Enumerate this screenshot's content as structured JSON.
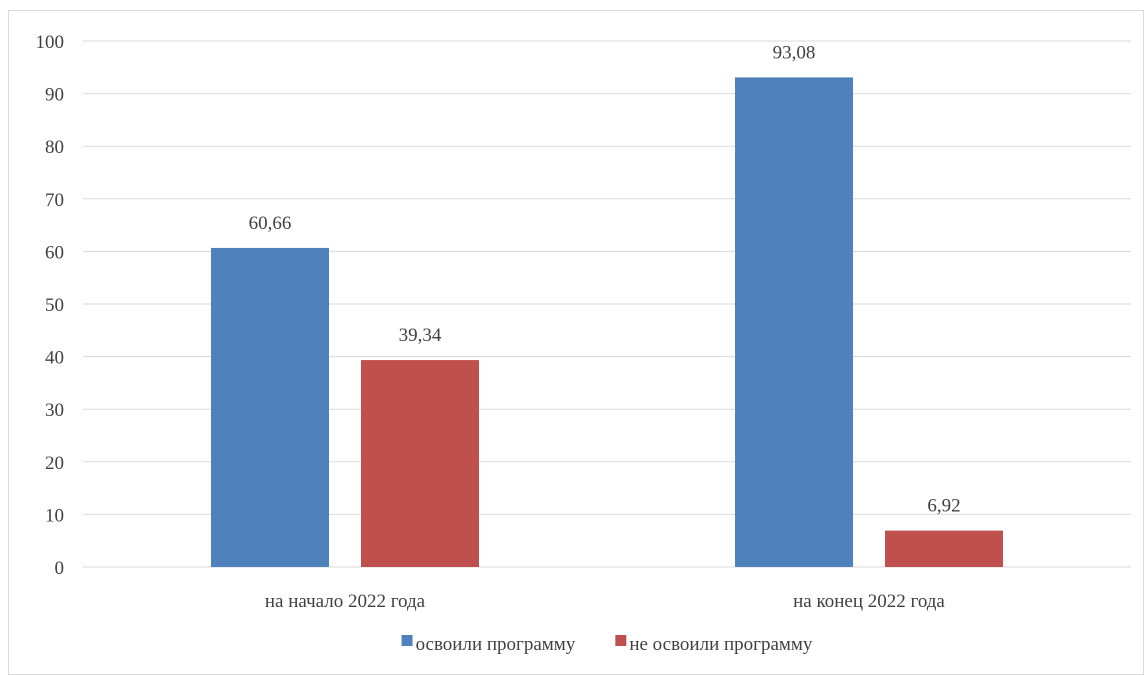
{
  "chart_data": {
    "type": "bar",
    "title": "",
    "xlabel": "",
    "ylabel": "",
    "categories": [
      "на начало 2022 года",
      "на конец 2022 года"
    ],
    "series": [
      {
        "name": "освоили программу",
        "values": [
          60.66,
          93.08
        ],
        "color": "#4f81bd"
      },
      {
        "name": "не освоили программу",
        "values": [
          39.34,
          6.92
        ],
        "color": "#c0504d"
      }
    ],
    "data_labels": [
      [
        "60,66",
        "93,08"
      ],
      [
        "39,34",
        "6,92"
      ]
    ],
    "ylim": [
      0,
      100
    ],
    "y_ticks": [
      0,
      10,
      20,
      30,
      40,
      50,
      60,
      70,
      80,
      90,
      100
    ],
    "grid": true,
    "legend_position": "bottom"
  }
}
